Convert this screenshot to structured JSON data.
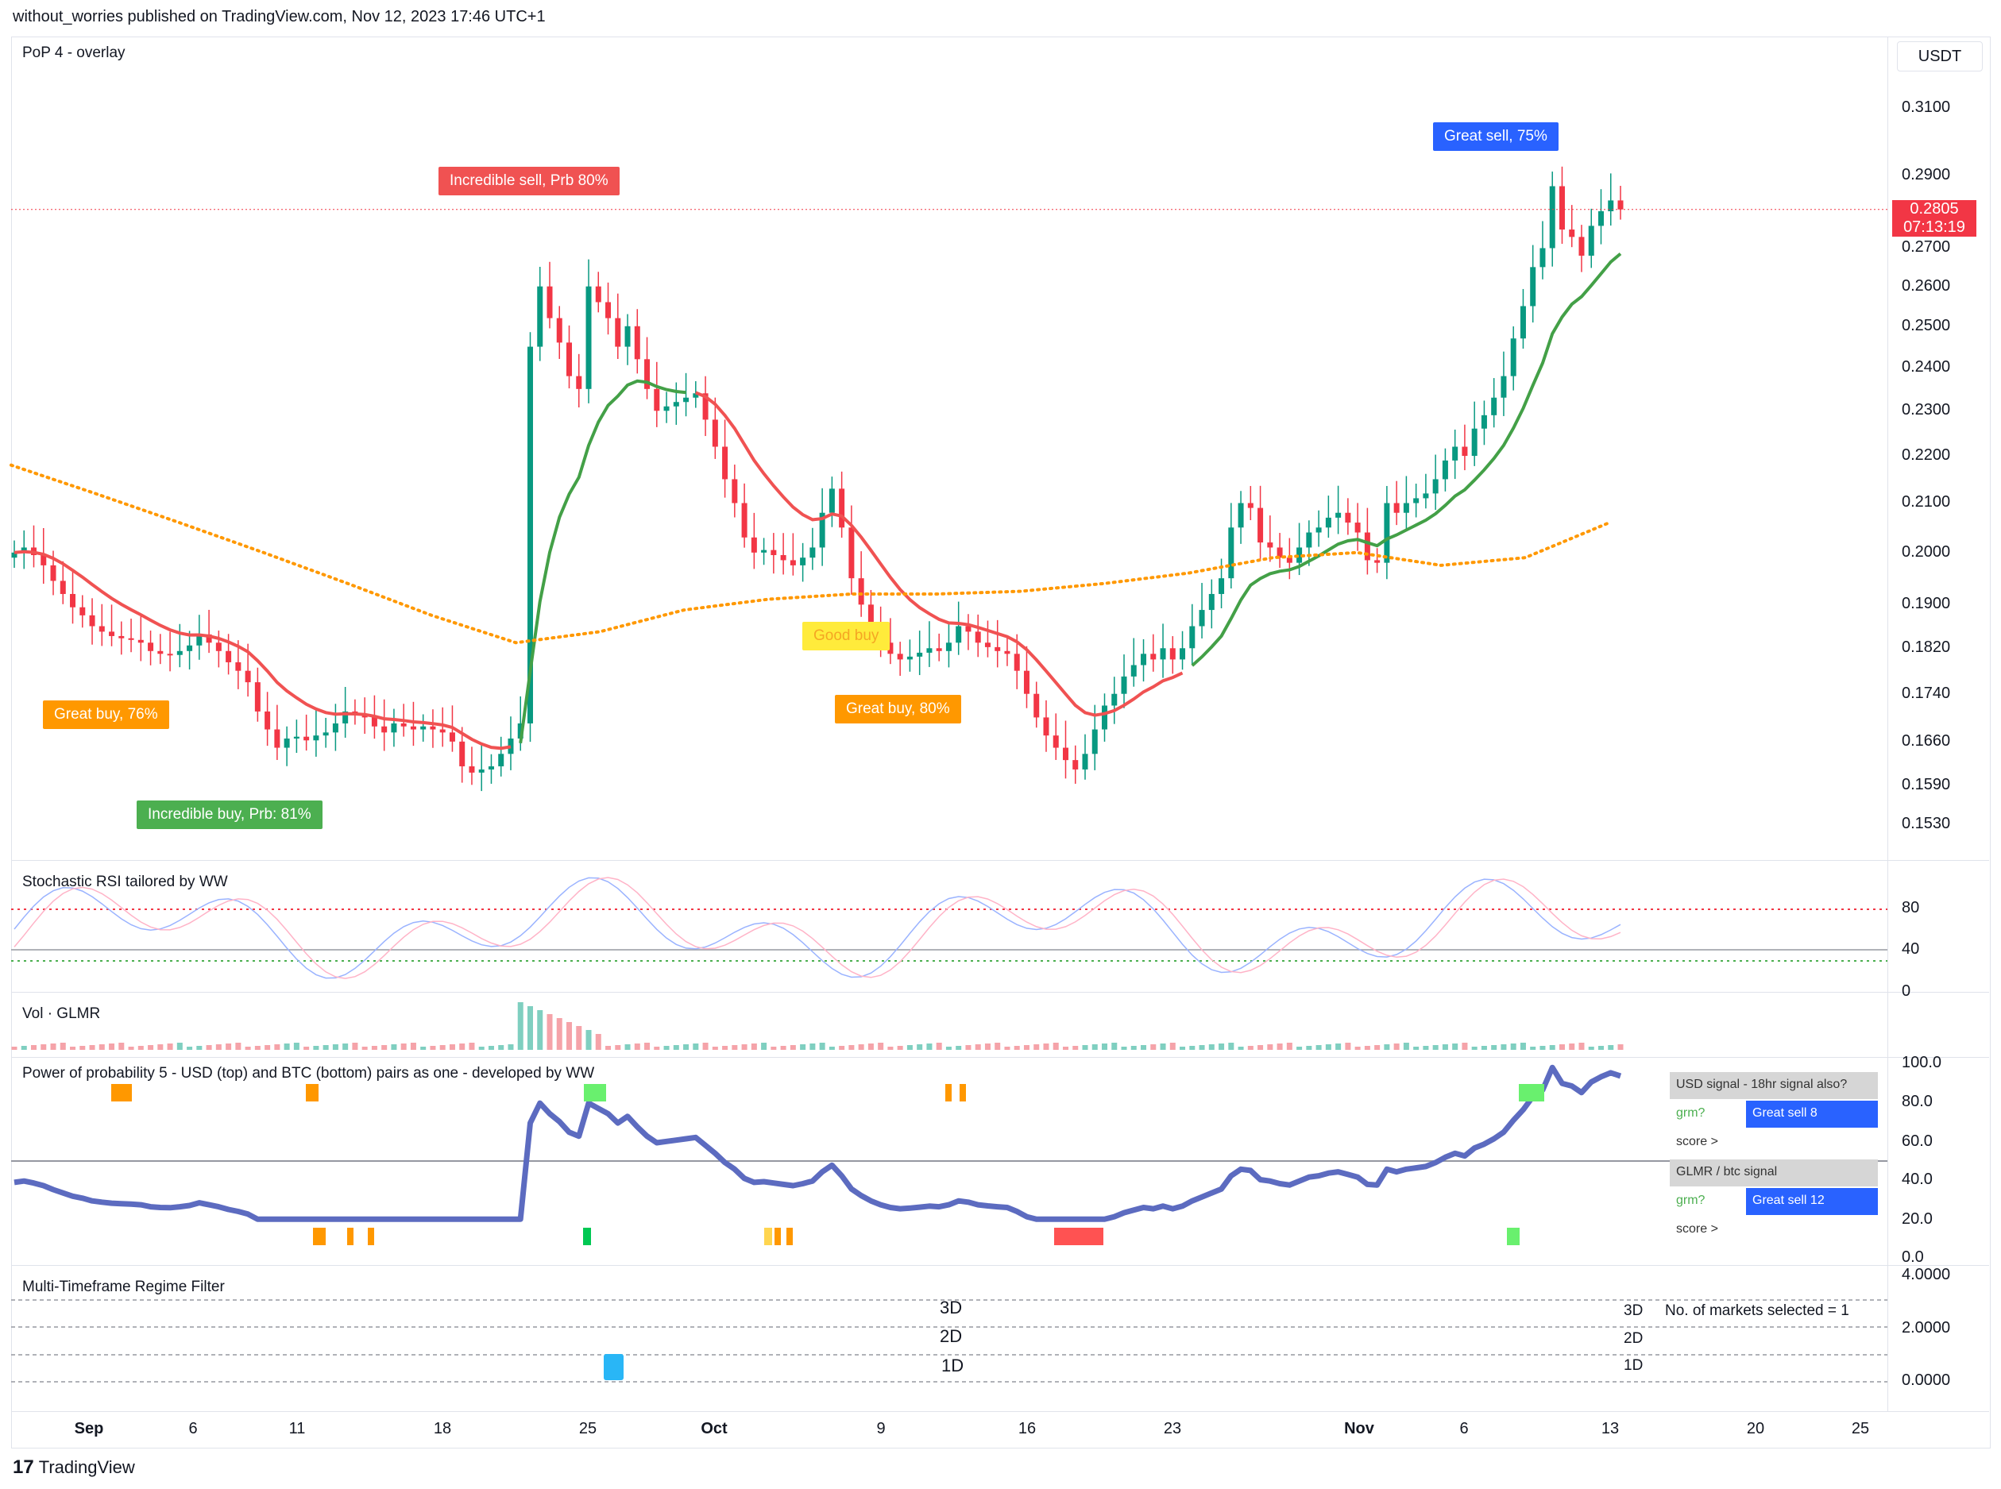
{
  "header": {
    "published": "without_worries published on TradingView.com, Nov 12, 2023 17:46 UTC+1"
  },
  "main_pane": {
    "title": "PoP 4 - overlay",
    "currency": "USDT",
    "current_price": "0.2805",
    "countdown": "07:13:19",
    "y_ticks": [
      "0.3100",
      "0.2900",
      "0.2700",
      "0.2600",
      "0.2500",
      "0.2400",
      "0.2300",
      "0.2200",
      "0.2100",
      "0.2000",
      "0.1900",
      "0.1820",
      "0.1740",
      "0.1660",
      "0.1590",
      "0.1530"
    ],
    "callouts": [
      {
        "text": "Incredible sell, Prb 80%",
        "color": "#f05252"
      },
      {
        "text": "Great sell, 75%",
        "color": "#2962ff"
      },
      {
        "text": "Good buy",
        "color": "#ffeb3b"
      },
      {
        "text": "Great buy,  76%",
        "color": "#ff9800"
      },
      {
        "text": "Great buy,  80%",
        "color": "#ff9800"
      },
      {
        "text": "Incredible buy, Prb: 81%",
        "color": "#4caf50"
      }
    ]
  },
  "stoch_pane": {
    "title": "Stochastic RSI tailored by WW",
    "y_ticks": [
      "80",
      "40",
      "0"
    ]
  },
  "vol_pane": {
    "title": "Vol · GLMR"
  },
  "pop_pane": {
    "title": "Power of probability 5 - USD (top) and BTC (bottom) pairs as one - developed by WW",
    "y_ticks": [
      "100.0",
      "80.0",
      "60.0",
      "40.0",
      "20.0",
      "0.0"
    ],
    "table": {
      "usd_header": "USD signal - 18hr signal also?",
      "usd_label": "grm?",
      "usd_value": "Great sell 8",
      "usd_score": "score >",
      "btc_header": "GLMR / btc signal",
      "btc_label": "grm?",
      "btc_value": "Great sell 12",
      "btc_score": "score >"
    }
  },
  "regime_pane": {
    "title": "Multi-Timeframe Regime Filter",
    "y_ticks": [
      "4.0000",
      "2.0000",
      "0.0000"
    ],
    "levels_mid": [
      "3D",
      "2D",
      "1D"
    ],
    "levels_right": [
      "3D",
      "2D",
      "1D"
    ],
    "markets_note": "No. of markets selected = 1"
  },
  "x_axis": {
    "ticks": [
      "Sep",
      "6",
      "11",
      "18",
      "25",
      "Oct",
      "9",
      "16",
      "23",
      "Nov",
      "6",
      "13",
      "20",
      "25"
    ]
  },
  "footer": {
    "brand": "TradingView"
  },
  "chart_data": {
    "type": "candlestick",
    "x_start": "2023-08-29",
    "last_bar": "2023-11-12",
    "ylim": [
      0.15,
      0.32
    ],
    "y_scale": "log",
    "close": [
      0.2,
      0.201,
      0.1995,
      0.1975,
      0.1945,
      0.192,
      0.1895,
      0.188,
      0.186,
      0.185,
      0.1842,
      0.1838,
      0.1835,
      0.183,
      0.1815,
      0.181,
      0.1808,
      0.1815,
      0.1825,
      0.1845,
      0.183,
      0.1815,
      0.1795,
      0.178,
      0.176,
      0.171,
      0.168,
      0.165,
      0.1665,
      0.1668,
      0.1662,
      0.167,
      0.1675,
      0.169,
      0.171,
      0.1705,
      0.17,
      0.1685,
      0.1675,
      0.169,
      0.1685,
      0.168,
      0.1685,
      0.168,
      0.1675,
      0.166,
      0.162,
      0.161,
      0.1615,
      0.162,
      0.164,
      0.1665,
      0.169,
      0.245,
      0.26,
      0.252,
      0.246,
      0.238,
      0.235,
      0.26,
      0.256,
      0.252,
      0.245,
      0.25,
      0.242,
      0.235,
      0.23,
      0.231,
      0.232,
      0.233,
      0.234,
      0.228,
      0.222,
      0.215,
      0.21,
      0.203,
      0.2,
      0.2005,
      0.1995,
      0.1985,
      0.1975,
      0.199,
      0.201,
      0.208,
      0.213,
      0.205,
      0.195,
      0.19,
      0.186,
      0.183,
      0.181,
      0.18,
      0.1805,
      0.1812,
      0.182,
      0.1815,
      0.183,
      0.186,
      0.185,
      0.183,
      0.1822,
      0.1815,
      0.181,
      0.178,
      0.174,
      0.17,
      0.167,
      0.165,
      0.163,
      0.1615,
      0.164,
      0.168,
      0.172,
      0.174,
      0.177,
      0.179,
      0.181,
      0.18,
      0.182,
      0.18,
      0.182,
      0.186,
      0.189,
      0.192,
      0.195,
      0.205,
      0.21,
      0.209,
      0.202,
      0.201,
      0.199,
      0.198,
      0.201,
      0.204,
      0.205,
      0.207,
      0.208,
      0.206,
      0.204,
      0.1985,
      0.198,
      0.21,
      0.208,
      0.21,
      0.211,
      0.212,
      0.215,
      0.219,
      0.222,
      0.22,
      0.226,
      0.229,
      0.233,
      0.238,
      0.247,
      0.255,
      0.265,
      0.27,
      0.287,
      0.275,
      0.273,
      0.268,
      0.276,
      0.28,
      0.283,
      0.2805
    ],
    "series": [
      {
        "name": "MA fast",
        "color": "#f05252 / #4caf50"
      },
      {
        "name": "MA slow (dotted)",
        "color": "#ff9800"
      }
    ]
  }
}
